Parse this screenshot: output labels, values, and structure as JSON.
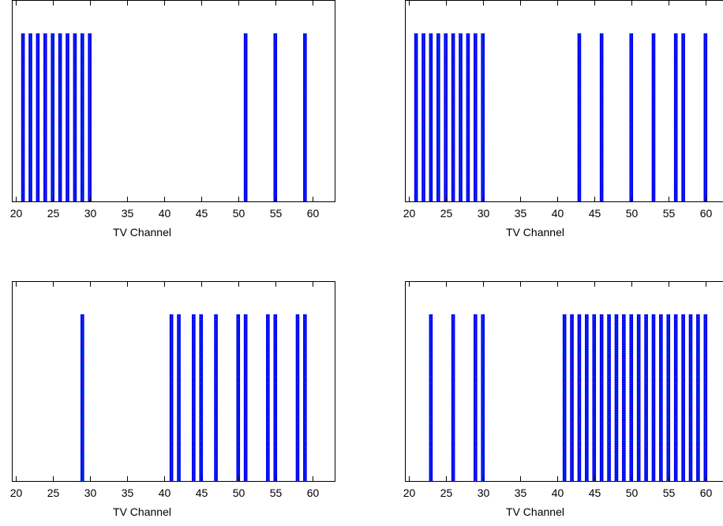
{
  "colors": {
    "bar": "#0000ee",
    "bar_edge": "#00ffff",
    "axes": "#000000",
    "background": "#ffffff"
  },
  "chart_data": [
    {
      "type": "bar",
      "title": "",
      "xlabel": "TV Channel",
      "ylabel": "",
      "xlim": [
        19.5,
        63
      ],
      "ylim": [
        0,
        1.2
      ],
      "xticks": [
        20,
        25,
        30,
        35,
        40,
        45,
        50,
        55,
        60
      ],
      "xtick_labels": [
        "20",
        "25",
        "30",
        "35",
        "40",
        "45",
        "50",
        "55",
        "60"
      ],
      "grid": false,
      "x": [
        21,
        22,
        23,
        24,
        25,
        26,
        27,
        28,
        29,
        30,
        51,
        55,
        59
      ],
      "values": [
        1,
        1,
        1,
        1,
        1,
        1,
        1,
        1,
        1,
        1,
        1,
        1,
        1
      ]
    },
    {
      "type": "bar",
      "title": "",
      "xlabel": "TV Channel",
      "ylabel": "",
      "xlim": [
        19.5,
        63
      ],
      "ylim": [
        0,
        1.2
      ],
      "xticks": [
        20,
        25,
        30,
        35,
        40,
        45,
        50,
        55,
        60
      ],
      "xtick_labels": [
        "20",
        "25",
        "30",
        "35",
        "40",
        "45",
        "50",
        "55",
        "60"
      ],
      "grid": false,
      "x": [
        21,
        22,
        23,
        24,
        25,
        26,
        27,
        28,
        29,
        30,
        43,
        46,
        50,
        53,
        56,
        57,
        60
      ],
      "values": [
        1,
        1,
        1,
        1,
        1,
        1,
        1,
        1,
        1,
        1,
        1,
        1,
        1,
        1,
        1,
        1,
        1
      ]
    },
    {
      "type": "bar",
      "title": "",
      "xlabel": "TV Channel",
      "ylabel": "",
      "xlim": [
        19.5,
        63
      ],
      "ylim": [
        0,
        1.2
      ],
      "xticks": [
        20,
        25,
        30,
        35,
        40,
        45,
        50,
        55,
        60
      ],
      "xtick_labels": [
        "20",
        "25",
        "30",
        "35",
        "40",
        "45",
        "50",
        "55",
        "60"
      ],
      "grid": false,
      "x": [
        29,
        41,
        42,
        44,
        45,
        47,
        50,
        51,
        54,
        55,
        58,
        59
      ],
      "values": [
        1,
        1,
        1,
        1,
        1,
        1,
        1,
        1,
        1,
        1,
        1,
        1
      ]
    },
    {
      "type": "bar",
      "title": "",
      "xlabel": "TV Channel",
      "ylabel": "",
      "xlim": [
        19.5,
        63
      ],
      "ylim": [
        0,
        1.2
      ],
      "xticks": [
        20,
        25,
        30,
        35,
        40,
        45,
        50,
        55,
        60
      ],
      "xtick_labels": [
        "20",
        "25",
        "30",
        "35",
        "40",
        "45",
        "50",
        "55",
        "60"
      ],
      "grid": false,
      "x": [
        23,
        26,
        29,
        30,
        41,
        42,
        43,
        44,
        45,
        46,
        47,
        48,
        49,
        50,
        51,
        52,
        53,
        54,
        55,
        56,
        57,
        58,
        59,
        60
      ],
      "values": [
        1,
        1,
        1,
        1,
        1,
        1,
        1,
        1,
        1,
        1,
        1,
        1,
        1,
        1,
        1,
        1,
        1,
        1,
        1,
        1,
        1,
        1,
        1,
        1
      ]
    }
  ]
}
